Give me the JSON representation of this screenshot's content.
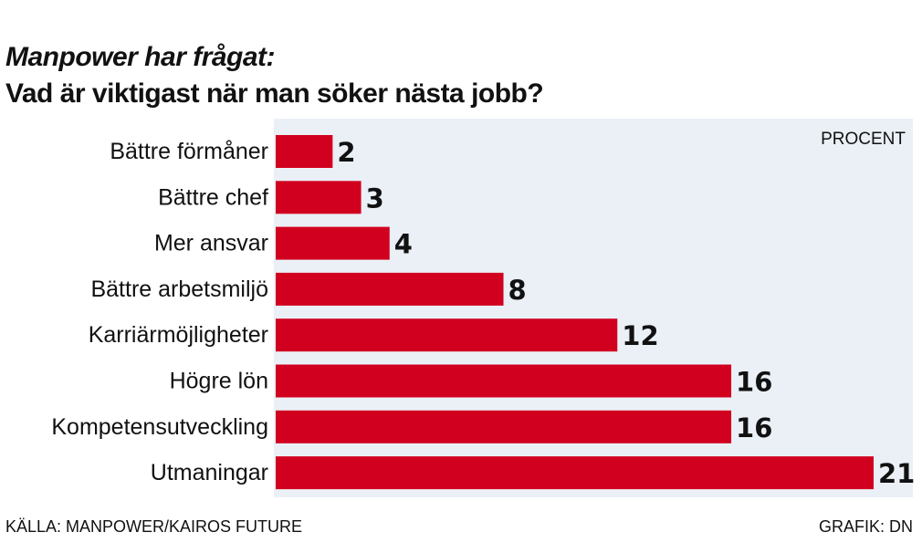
{
  "title": {
    "line1": "Manpower har frågat:",
    "line2": "Vad  är viktigast när man söker nästa jobb?"
  },
  "unit_label": "PROCENT",
  "footer": {
    "source": "KÄLLA: MANPOWER/KAIROS FUTURE",
    "credit": "GRAFIK: DN"
  },
  "colors": {
    "bar": "#d1001f",
    "plot_background": "#eaf0f6"
  },
  "chart_data": {
    "type": "bar",
    "orientation": "horizontal",
    "categories": [
      "Bättre förmåner",
      "Bättre chef",
      "Mer ansvar",
      "Bättre arbetsmiljö",
      "Karriärmöjligheter",
      "Högre lön",
      "Kompetensutveckling",
      "Utmaningar"
    ],
    "values": [
      2,
      3,
      4,
      8,
      12,
      16,
      16,
      21
    ],
    "title": "Vad  är viktigast när man söker nästa jobb?",
    "xlabel": "PROCENT",
    "ylabel": "",
    "xlim": [
      0,
      21
    ],
    "grid": false,
    "legend": "none"
  }
}
